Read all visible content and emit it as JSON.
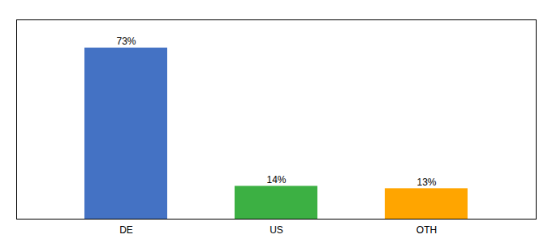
{
  "chart_data": {
    "type": "bar",
    "categories": [
      "DE",
      "US",
      "OTH"
    ],
    "values": [
      73,
      14,
      13
    ],
    "value_labels": [
      "73%",
      "14%",
      "13%"
    ],
    "colors": [
      "#4472C4",
      "#3CB043",
      "#FFA500"
    ],
    "ylim": [
      0,
      85
    ],
    "data_labels": true,
    "tick_labels": "x",
    "grid": false
  }
}
